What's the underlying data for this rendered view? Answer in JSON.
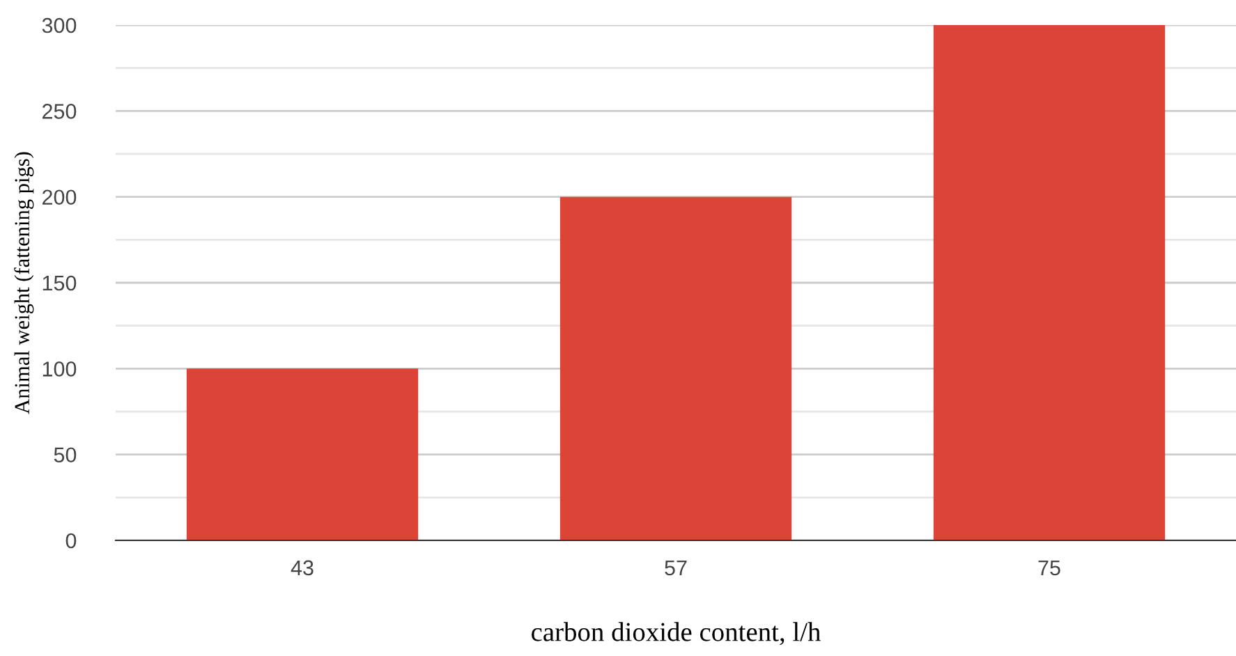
{
  "chart_data": {
    "type": "bar",
    "xlabel": "carbon dioxide content, l/h",
    "ylabel": "Animal weight (fattening pigs)",
    "categories": [
      "43",
      "57",
      "75"
    ],
    "values": [
      100,
      200,
      300
    ],
    "color": "#db4437",
    "ylim": [
      0,
      300
    ],
    "yticks": [
      0,
      {
        "value": 25,
        "label": null
      },
      50,
      {
        "value": 75,
        "label": null
      },
      100,
      {
        "value": 125,
        "label": null
      },
      150,
      {
        "value": 175,
        "label": null
      },
      200,
      {
        "value": 225,
        "label": null
      },
      250,
      {
        "value": 275,
        "label": null
      },
      300
    ],
    "grid": "y"
  }
}
